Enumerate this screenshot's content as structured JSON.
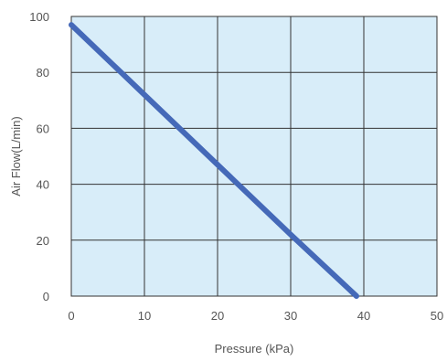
{
  "chart_data": {
    "type": "line",
    "title": "",
    "xlabel": "Pressure (kPa)",
    "ylabel": "Air Flow(L/min)",
    "xlim": [
      0,
      50
    ],
    "ylim": [
      0,
      100
    ],
    "xticks": [
      0,
      10,
      20,
      30,
      40,
      50
    ],
    "yticks": [
      0,
      20,
      40,
      60,
      80,
      100
    ],
    "grid": true,
    "colors": {
      "line": "#4569b8",
      "plot_bg": "#d8edf9",
      "grid": "#333333"
    },
    "series": [
      {
        "x": [
          0,
          10,
          20,
          30,
          39
        ],
        "y": [
          97,
          72,
          47,
          22,
          0
        ]
      }
    ]
  }
}
